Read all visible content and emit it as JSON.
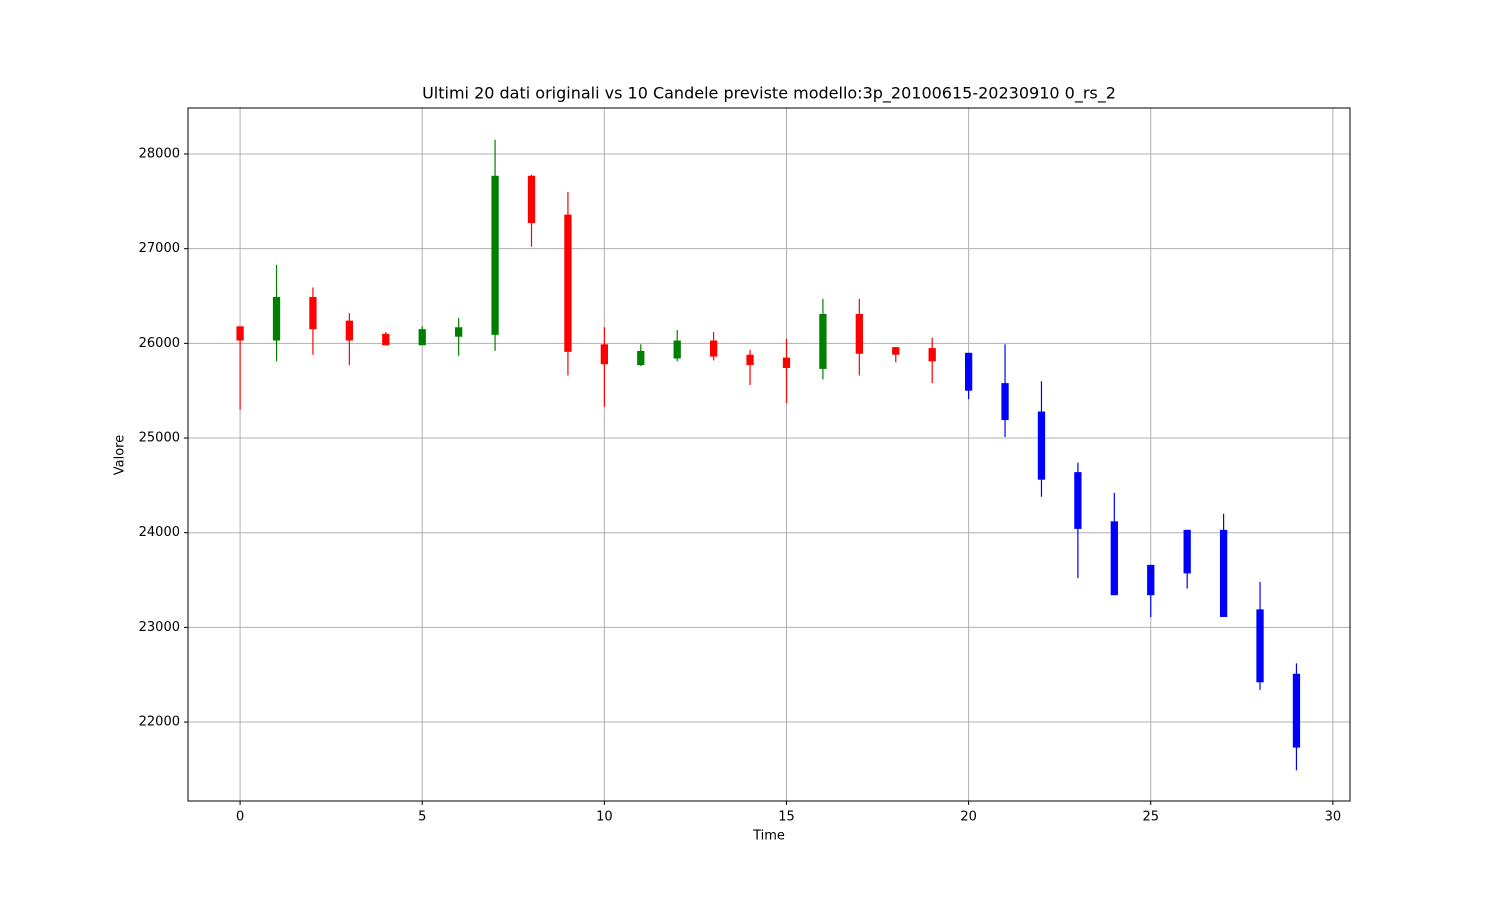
{
  "chart_data": {
    "type": "candlestick",
    "title": "Ultimi 20 dati originali vs 10 Candele previste modello:3p_20100615-20230910 0_rs_2",
    "x_label": "Time",
    "y_label": "Valore",
    "x": [
      0,
      1,
      2,
      3,
      4,
      5,
      6,
      7,
      8,
      9,
      10,
      11,
      12,
      13,
      14,
      15,
      16,
      17,
      18,
      19,
      20,
      21,
      22,
      23,
      24,
      25,
      26,
      27,
      28,
      29
    ],
    "open": [
      26180,
      26030,
      26490,
      26240,
      26100,
      25980,
      26070,
      26090,
      27770,
      27360,
      25990,
      25770,
      25840,
      26030,
      25880,
      25850,
      25730,
      26310,
      25960,
      25950,
      25900,
      25580,
      25280,
      24640,
      24120,
      23660,
      24030,
      24030,
      23190,
      22510
    ],
    "high": [
      26180,
      26830,
      26590,
      26320,
      26120,
      26180,
      26270,
      28150,
      27780,
      27600,
      26170,
      25990,
      26140,
      26120,
      25930,
      26050,
      26470,
      26470,
      25960,
      26060,
      25900,
      25990,
      25600,
      24740,
      24420,
      23660,
      24030,
      24200,
      23480,
      22620
    ],
    "low": [
      25300,
      25810,
      25880,
      25770,
      25980,
      25980,
      25870,
      25920,
      27020,
      25660,
      25330,
      25760,
      25810,
      25820,
      25560,
      25370,
      25620,
      25660,
      25800,
      25580,
      25410,
      25010,
      24380,
      23520,
      23340,
      23110,
      23410,
      23110,
      22340,
      21490
    ],
    "close": [
      26030,
      26490,
      26150,
      26030,
      25980,
      26150,
      26170,
      27770,
      27270,
      25910,
      25780,
      25920,
      26030,
      25860,
      25770,
      25740,
      26310,
      25890,
      25880,
      25810,
      25500,
      25190,
      24560,
      24040,
      23340,
      23340,
      23570,
      23110,
      22420,
      21730
    ],
    "colors": [
      "red",
      "green",
      "red",
      "red",
      "red",
      "green",
      "green",
      "green",
      "red",
      "red",
      "red",
      "green",
      "green",
      "red",
      "red",
      "red",
      "green",
      "red",
      "red",
      "red",
      "blue",
      "blue",
      "blue",
      "blue",
      "blue",
      "blue",
      "blue",
      "blue",
      "blue",
      "blue"
    ],
    "xlim": [
      -1.43,
      30.47
    ],
    "ylim": [
      21166,
      28486
    ],
    "xticks": [
      0,
      5,
      10,
      15,
      20,
      25,
      30
    ],
    "yticks": [
      22000,
      23000,
      24000,
      25000,
      26000,
      27000,
      28000
    ],
    "grid": true
  }
}
